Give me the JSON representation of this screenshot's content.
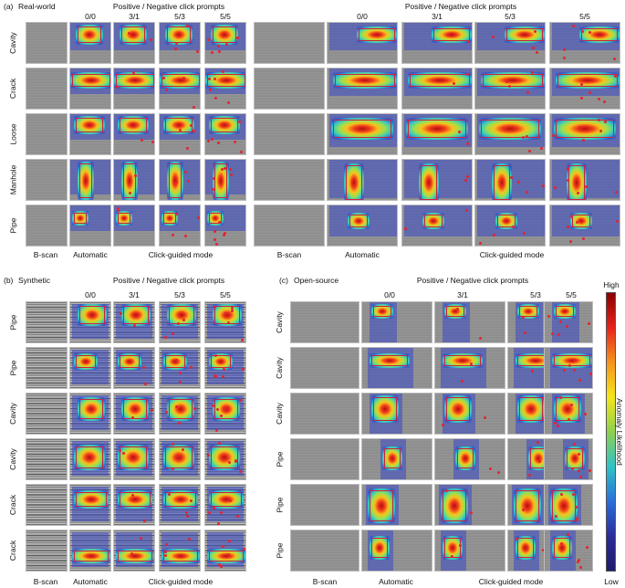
{
  "panels": [
    {
      "id": "a",
      "tag": "(a)",
      "name": "Real-world",
      "header": "Positive / Negative click prompts",
      "header2": "Positive / Negative click prompts",
      "columns": [
        "0/0",
        "3/1",
        "5/3",
        "5/5"
      ],
      "rows": [
        "Cavity",
        "Crack",
        "Loose",
        "Manhole",
        "Pipe"
      ],
      "footer": {
        "bscan": "B-scan",
        "automatic": "Automatic",
        "click": "Click-guided mode"
      }
    },
    {
      "id": "b",
      "tag": "(b)",
      "name": "Synthetic",
      "header": "Positive / Negative click prompts",
      "columns": [
        "0/0",
        "3/1",
        "5/3",
        "5/5"
      ],
      "rows": [
        "Pipe",
        "Pipe",
        "Cavity",
        "Cavity",
        "Crack",
        "Crack"
      ],
      "footer": {
        "bscan": "B-scan",
        "automatic": "Automatic",
        "click": "Click-guided mode"
      }
    },
    {
      "id": "c",
      "tag": "(c)",
      "name": "Open-source",
      "header": "Positive / Negative click prompts",
      "columns": [
        "0/0",
        "3/1",
        "5/3",
        "5/5"
      ],
      "rows": [
        "Cavity",
        "Cavity",
        "Cavity",
        "Pipe",
        "Pipe",
        "Pipe"
      ],
      "footer": {
        "bscan": "B-scan",
        "automatic": "Automatic",
        "click": "Click-guided mode"
      }
    }
  ],
  "colorbar": {
    "high": "High",
    "low": "Low",
    "title": "Anomaly Likelihood",
    "colors": [
      "#8b0000",
      "#e8231b",
      "#f7941d",
      "#f5e617",
      "#8fd14f",
      "#2fc3c6",
      "#2a6fdb",
      "#2b2d9a",
      "#1e1a6b"
    ]
  },
  "colors": {
    "box": "#d0203a",
    "point": "#e4242f",
    "mask": "#3b48c8"
  }
}
